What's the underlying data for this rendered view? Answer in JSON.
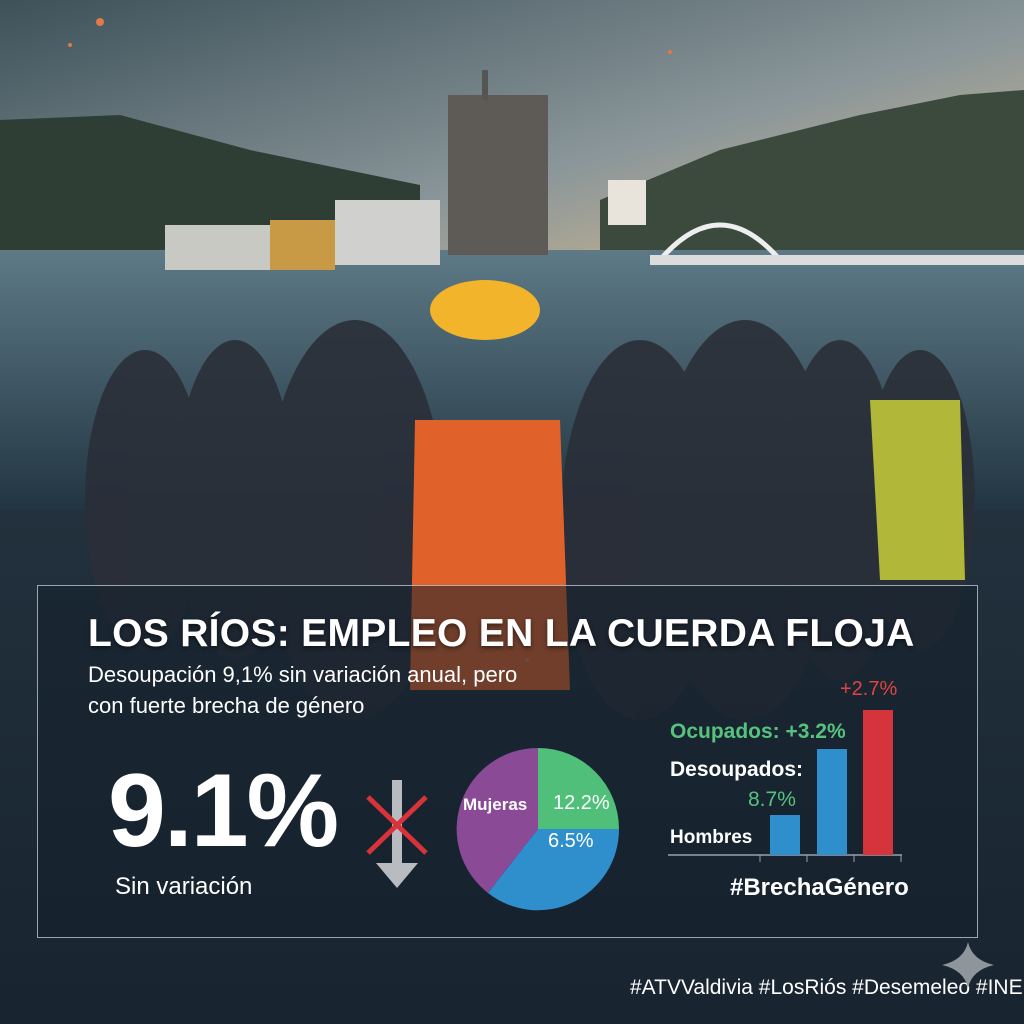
{
  "title": "LOS RÍOS: EMPLEO EN LA CUERDA FLOJA",
  "subtitle": [
    "Desoupación 9,1% sin variación anual, pero",
    "con fuerte brecha de género"
  ],
  "headline_stat": {
    "value": "9.1%",
    "caption": "Sin variación",
    "icon": "crossed-out-down-arrow-icon"
  },
  "pie": {
    "label": "Mujeras",
    "slices": [
      {
        "label": "12.2%",
        "value": 12.2,
        "color": "#4fbf7a"
      },
      {
        "label": "6.5%",
        "value": 6.5,
        "color": "#2f8fcc"
      },
      {
        "label": "Mujeras",
        "color": "#8a4a96"
      }
    ]
  },
  "bars": {
    "ocupados_label": "Ocupados: +3.2%",
    "desoupados_label": "Desoupados:",
    "desoupados_value": "8.7%",
    "hombres_label": "Hombres",
    "top_label": "+2.7%",
    "colors": {
      "blue": "#2f8fcc",
      "red": "#d6343c",
      "green": "#56c27e"
    },
    "hashtag": "#BrechaGénero"
  },
  "footer": {
    "hashtags": "#ATVValdivia #LosRiós #Desemeleo #INE",
    "logo_icon": "sparkle-star-icon"
  },
  "colors": {
    "green": "#56c27e",
    "red": "#e2433f",
    "blue": "#2f8fcc",
    "purple": "#8a4a96"
  }
}
